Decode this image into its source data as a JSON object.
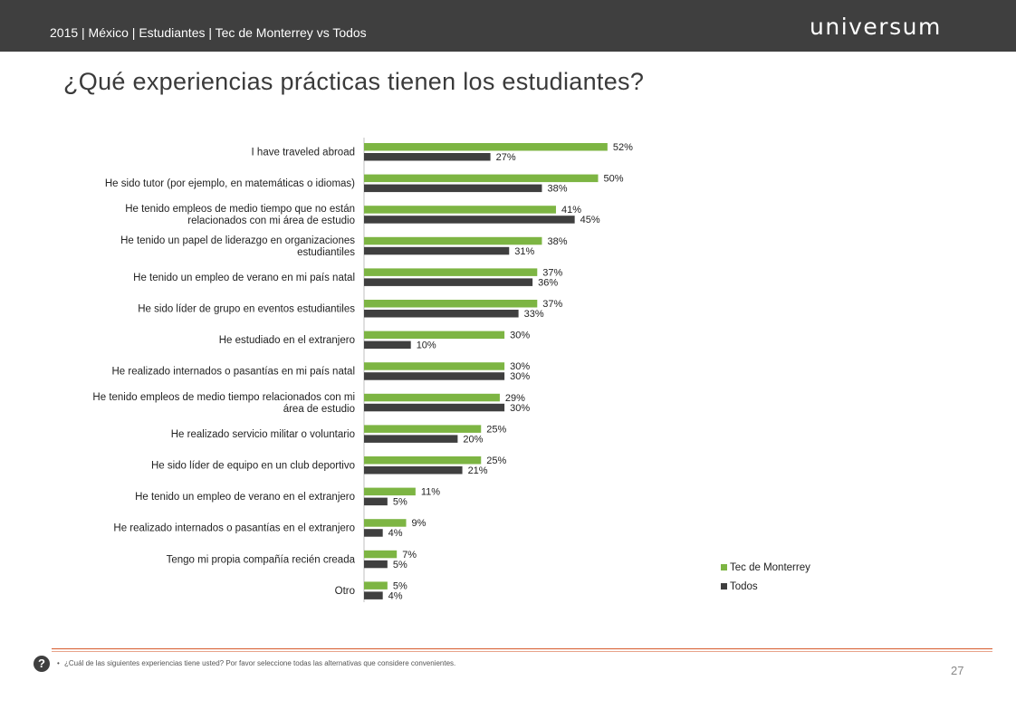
{
  "header": {
    "subtitle": "2015 | México | Estudiantes | Tec de Monterrey vs Todos",
    "brand": "universum"
  },
  "title": "¿Qué experiencias prácticas tienen los estudiantes?",
  "colors": {
    "tec": "#7db543",
    "todos": "#3f3f3f",
    "header_bg": "#3f3f3f",
    "rule": "#d65a2c"
  },
  "chart_data": {
    "type": "bar",
    "orientation": "horizontal",
    "categories": [
      [
        "I have traveled abroad"
      ],
      [
        "He sido tutor (por ejemplo, en matemáticas o idiomas)"
      ],
      [
        "He tenido empleos de medio tiempo que no están",
        "relacionados con mi área de estudio"
      ],
      [
        "He tenido un papel de liderazgo en organizaciones",
        "estudiantiles"
      ],
      [
        "He tenido un empleo de verano en mi país natal"
      ],
      [
        "He sido líder de grupo en eventos estudiantiles"
      ],
      [
        "He estudiado en el extranjero"
      ],
      [
        "He realizado internados o pasantías en mi país natal"
      ],
      [
        "He tenido empleos de medio tiempo relacionados con mi",
        "área de estudio"
      ],
      [
        "He realizado servicio militar o voluntario"
      ],
      [
        "He sido líder de equipo en un club deportivo"
      ],
      [
        "He tenido un empleo de verano en el extranjero"
      ],
      [
        "He realizado internados o pasantías en el extranjero"
      ],
      [
        "Tengo mi propia compañía recién creada"
      ],
      [
        "Otro"
      ]
    ],
    "series": [
      {
        "name": "Tec de Monterrey",
        "color": "#7db543",
        "values": [
          52,
          50,
          41,
          38,
          37,
          37,
          30,
          30,
          29,
          25,
          25,
          11,
          9,
          7,
          5
        ]
      },
      {
        "name": "Todos",
        "color": "#3f3f3f",
        "values": [
          27,
          38,
          45,
          31,
          36,
          33,
          10,
          30,
          30,
          20,
          21,
          5,
          4,
          5,
          4
        ]
      }
    ],
    "value_suffix": "%",
    "xlim": [
      0,
      100
    ],
    "legend": "bottom-right",
    "grid": false
  },
  "footer": {
    "question_mark": "?",
    "bullet": "•",
    "question": "¿Cuál de las siguientes experiencias tiene usted? Por favor seleccione todas las alternativas que considere convenientes.",
    "page": "27"
  }
}
